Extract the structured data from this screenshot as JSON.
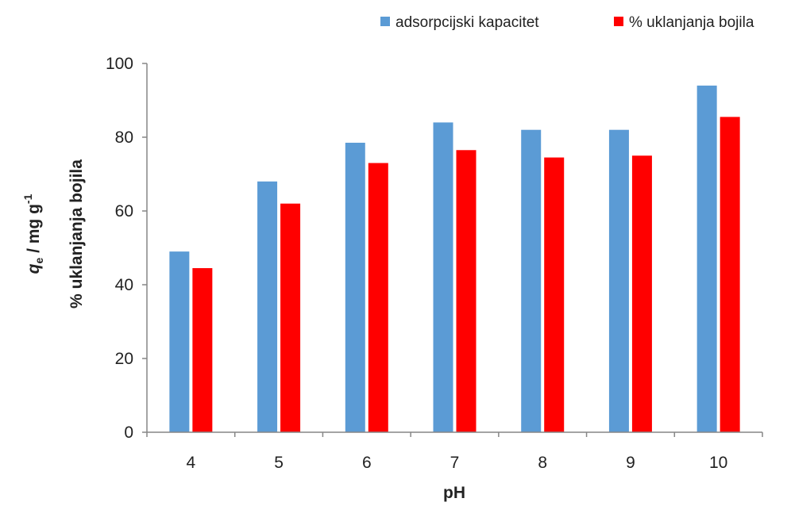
{
  "chart_data": {
    "type": "bar",
    "categories": [
      "4",
      "5",
      "6",
      "7",
      "8",
      "9",
      "10"
    ],
    "series": [
      {
        "name": "adsorpcijski kapacitet",
        "color": "#5b9bd5",
        "values": [
          49,
          68,
          78.5,
          84,
          82,
          82,
          94
        ]
      },
      {
        "name": "% uklanjanja bojila",
        "color": "#ff0000",
        "values": [
          44.5,
          62,
          73,
          76.5,
          74.5,
          75,
          85.5
        ]
      }
    ],
    "xlabel": "pH",
    "ylabel_primary": "% uklanjanja bojila",
    "ylabel_secondary": {
      "symbol": "q",
      "subscript": "e",
      "unit": " / mg g",
      "exponent": "-1"
    },
    "ylim": [
      0,
      100
    ],
    "yticks": [
      "0",
      "20",
      "40",
      "60",
      "80",
      "100"
    ],
    "grid": false,
    "legend_position": "top-right"
  }
}
